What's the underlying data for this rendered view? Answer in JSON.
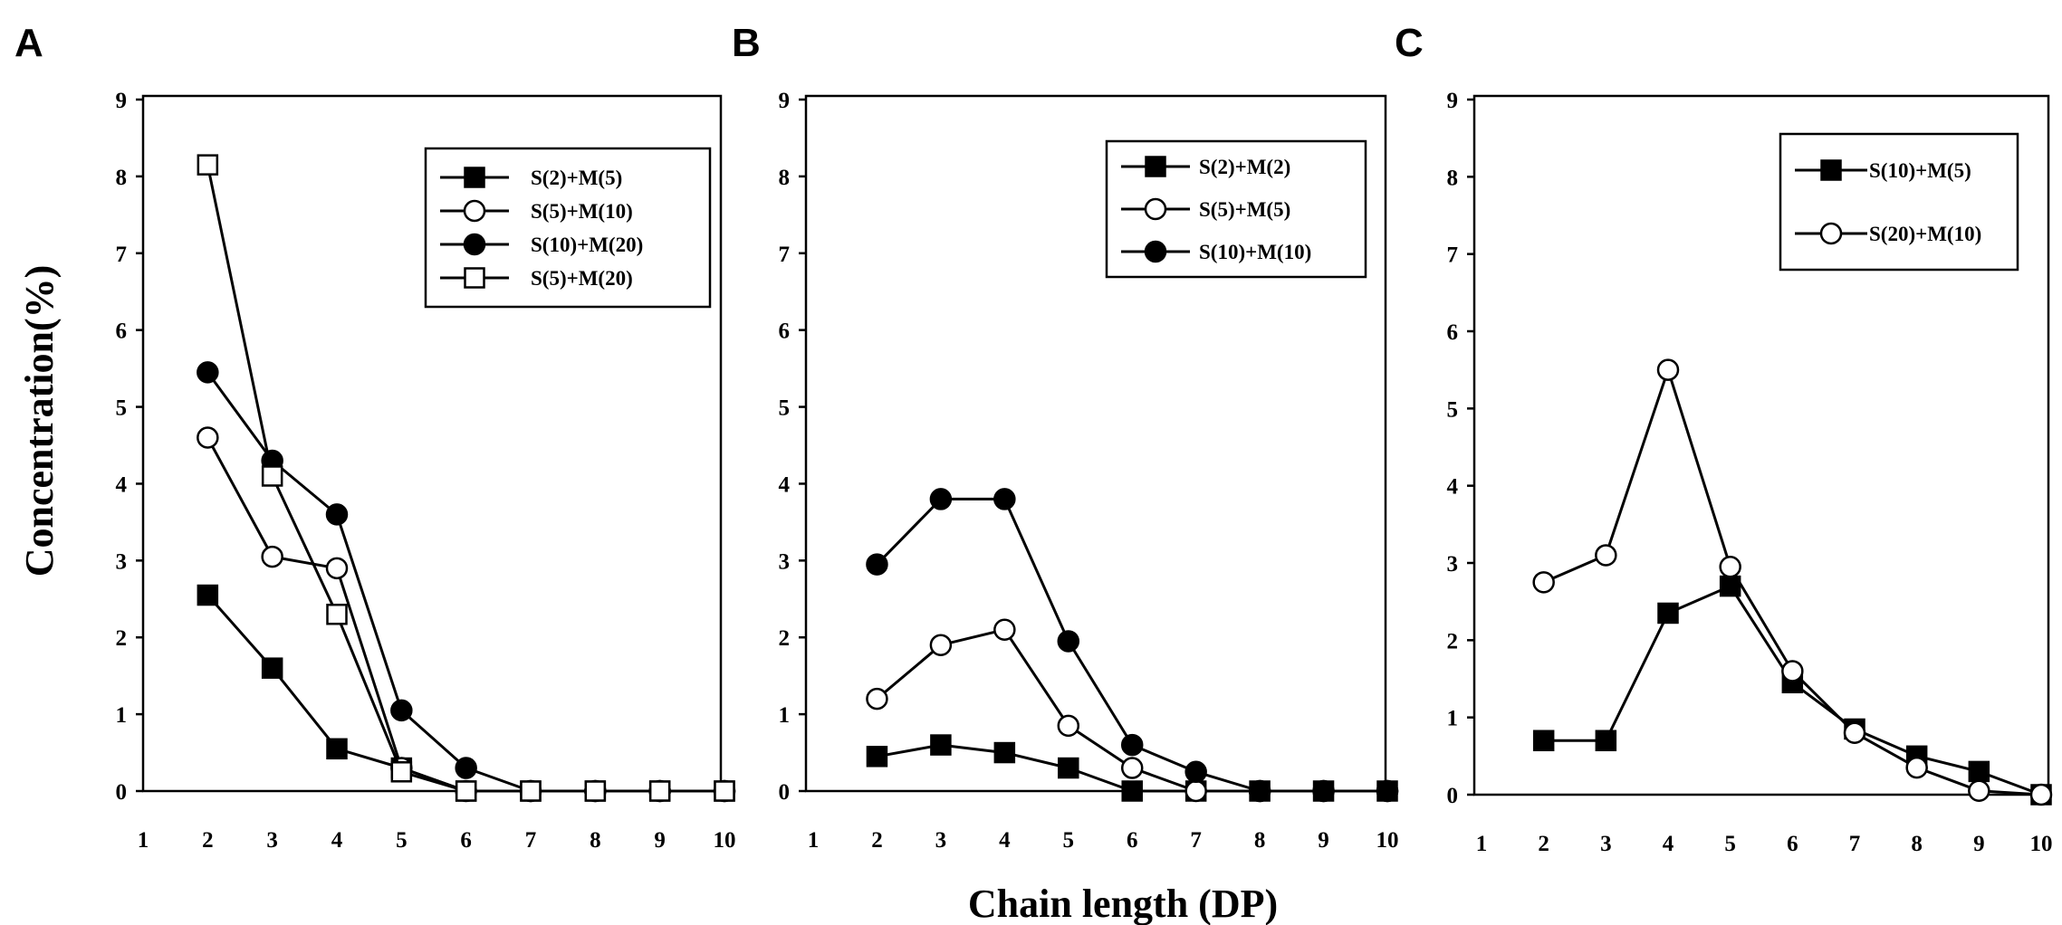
{
  "figure": {
    "ylabel": "Concentration(%)",
    "xlabel": "Chain length (DP)"
  },
  "chart_data": [
    {
      "type": "line",
      "panel": "A",
      "xlim": [
        1,
        10
      ],
      "ylim": [
        0,
        9
      ],
      "x_ticks": [
        1,
        2,
        3,
        4,
        5,
        6,
        7,
        8,
        9,
        10
      ],
      "y_ticks": [
        0,
        1,
        2,
        3,
        4,
        5,
        6,
        7,
        8,
        9
      ],
      "grid": false,
      "legend_position": "top-right",
      "series": [
        {
          "name": "S(2)+M(5)",
          "marker": "square-filled",
          "x": [
            2,
            3,
            4,
            5,
            6,
            7,
            8,
            9,
            10
          ],
          "y": [
            2.55,
            1.6,
            0.55,
            0.3,
            0,
            0,
            0,
            0,
            0
          ]
        },
        {
          "name": "S(5)+M(10)",
          "marker": "circle-open",
          "x": [
            2,
            3,
            4,
            5,
            6,
            7,
            8,
            9,
            10
          ],
          "y": [
            4.6,
            3.05,
            2.9,
            0.3,
            0,
            0,
            0,
            0,
            0
          ]
        },
        {
          "name": "S(10)+M(20)",
          "marker": "circle-filled",
          "x": [
            2,
            3,
            4,
            5,
            6,
            7,
            8,
            9,
            10
          ],
          "y": [
            5.45,
            4.3,
            3.6,
            1.05,
            0.3,
            0,
            0,
            0,
            0
          ]
        },
        {
          "name": "S(5)+M(20)",
          "marker": "square-open",
          "x": [
            2,
            3,
            4,
            5,
            6,
            7,
            8,
            9,
            10
          ],
          "y": [
            8.15,
            4.1,
            2.3,
            0.25,
            0,
            0,
            0,
            0,
            0
          ]
        }
      ]
    },
    {
      "type": "line",
      "panel": "B",
      "xlim": [
        1,
        10
      ],
      "ylim": [
        0,
        9
      ],
      "x_ticks": [
        1,
        2,
        3,
        4,
        5,
        6,
        7,
        8,
        9,
        10
      ],
      "y_ticks": [
        0,
        1,
        2,
        3,
        4,
        5,
        6,
        7,
        8,
        9
      ],
      "grid": false,
      "legend_position": "top-right",
      "series": [
        {
          "name": "S(2)+M(2)",
          "marker": "square-filled",
          "x": [
            2,
            3,
            4,
            5,
            6,
            7,
            8,
            9,
            10
          ],
          "y": [
            0.45,
            0.6,
            0.5,
            0.3,
            0,
            0,
            0,
            0,
            0
          ]
        },
        {
          "name": "S(5)+M(5)",
          "marker": "circle-open",
          "x": [
            2,
            3,
            4,
            5,
            6,
            7,
            8,
            9,
            10
          ],
          "y": [
            1.2,
            1.9,
            2.1,
            0.85,
            0.3,
            0,
            0,
            0,
            0
          ]
        },
        {
          "name": "S(10)+M(10)",
          "marker": "circle-filled",
          "x": [
            2,
            3,
            4,
            5,
            6,
            7,
            8,
            9,
            10
          ],
          "y": [
            2.95,
            3.8,
            3.8,
            1.95,
            0.6,
            0.25,
            0,
            0,
            0
          ]
        }
      ]
    },
    {
      "type": "line",
      "panel": "C",
      "xlim": [
        1,
        10
      ],
      "ylim": [
        0,
        9
      ],
      "x_ticks": [
        1,
        2,
        3,
        4,
        5,
        6,
        7,
        8,
        9,
        10
      ],
      "y_ticks": [
        0,
        1,
        2,
        3,
        4,
        5,
        6,
        7,
        8,
        9
      ],
      "grid": false,
      "legend_position": "top-right",
      "series": [
        {
          "name": "S(10)+M(5)",
          "marker": "square-filled",
          "x": [
            2,
            3,
            4,
            5,
            6,
            7,
            8,
            9,
            10
          ],
          "y": [
            0.7,
            0.7,
            2.35,
            2.7,
            1.45,
            0.85,
            0.5,
            0.3,
            0
          ]
        },
        {
          "name": "S(20)+M(10)",
          "marker": "circle-open",
          "x": [
            2,
            3,
            4,
            5,
            6,
            7,
            8,
            9,
            10
          ],
          "y": [
            2.75,
            3.1,
            5.5,
            2.95,
            1.6,
            0.8,
            0.35,
            0.05,
            0
          ]
        }
      ]
    }
  ]
}
